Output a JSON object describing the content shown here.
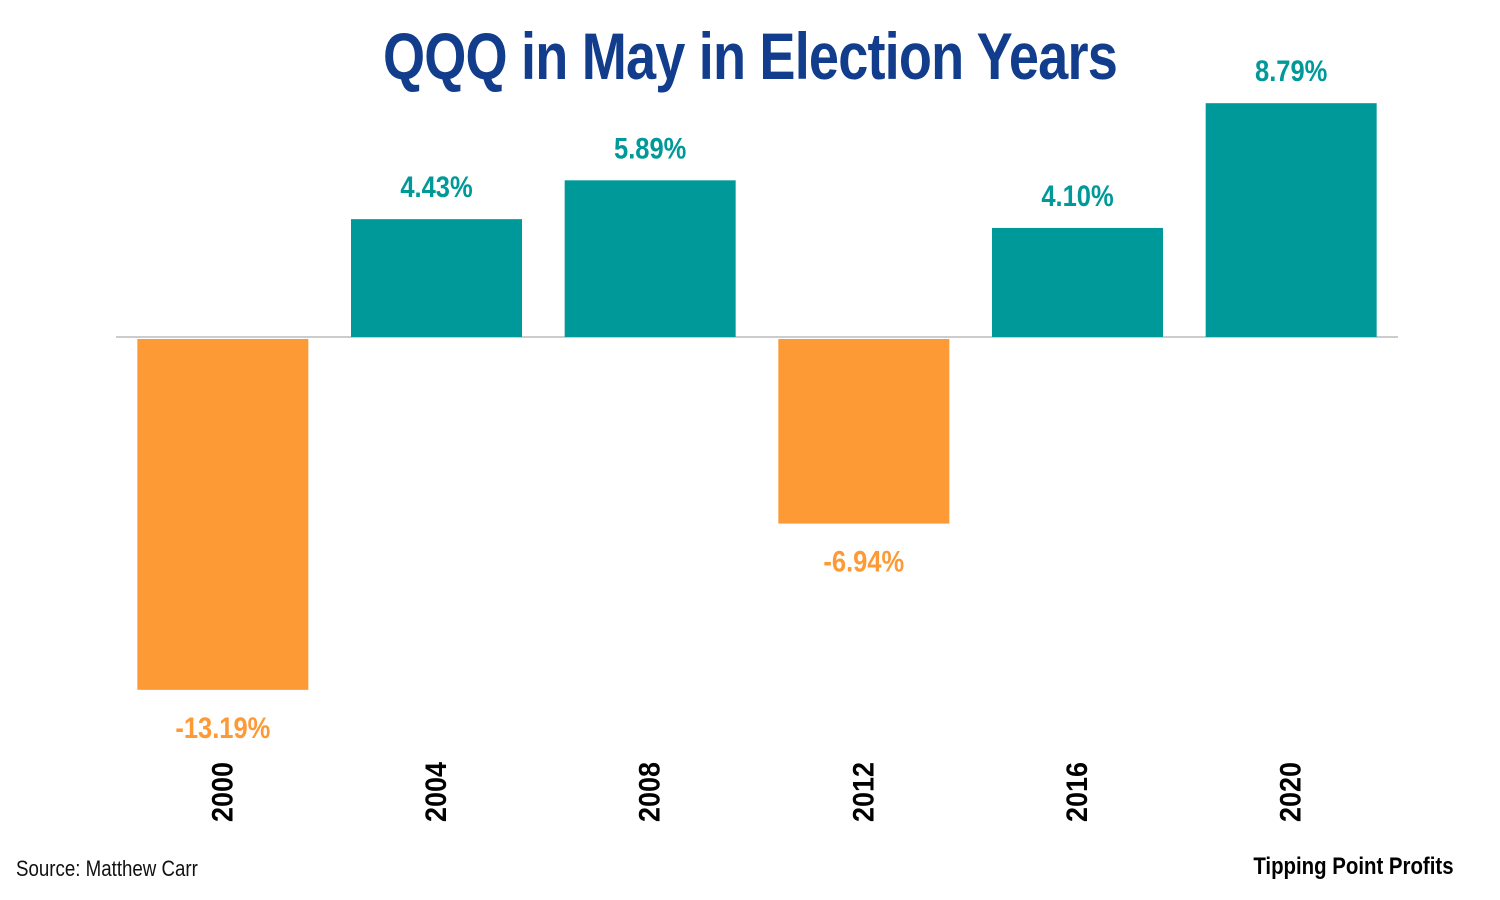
{
  "title": "QQQ in May in Election Years",
  "source": "Source: Matthew Carr",
  "brand": "Tipping Point Profits",
  "colors": {
    "positive": "#00999a",
    "negative": "#fd9a36",
    "title": "#123d8c",
    "axis": "#cccccc"
  },
  "chart_data": {
    "type": "bar",
    "title": "QQQ in May in Election Years",
    "categories": [
      "2000",
      "2004",
      "2008",
      "2012",
      "2016",
      "2020"
    ],
    "values": [
      -13.19,
      4.43,
      5.89,
      -6.94,
      4.1,
      8.79
    ],
    "labels": [
      "-13.19%",
      "4.43%",
      "5.89%",
      "-6.94%",
      "4.10%",
      "8.79%"
    ],
    "xlabel": "",
    "ylabel": "",
    "ylim": [
      -13.19,
      8.79
    ],
    "grid": false,
    "legend": "none"
  }
}
